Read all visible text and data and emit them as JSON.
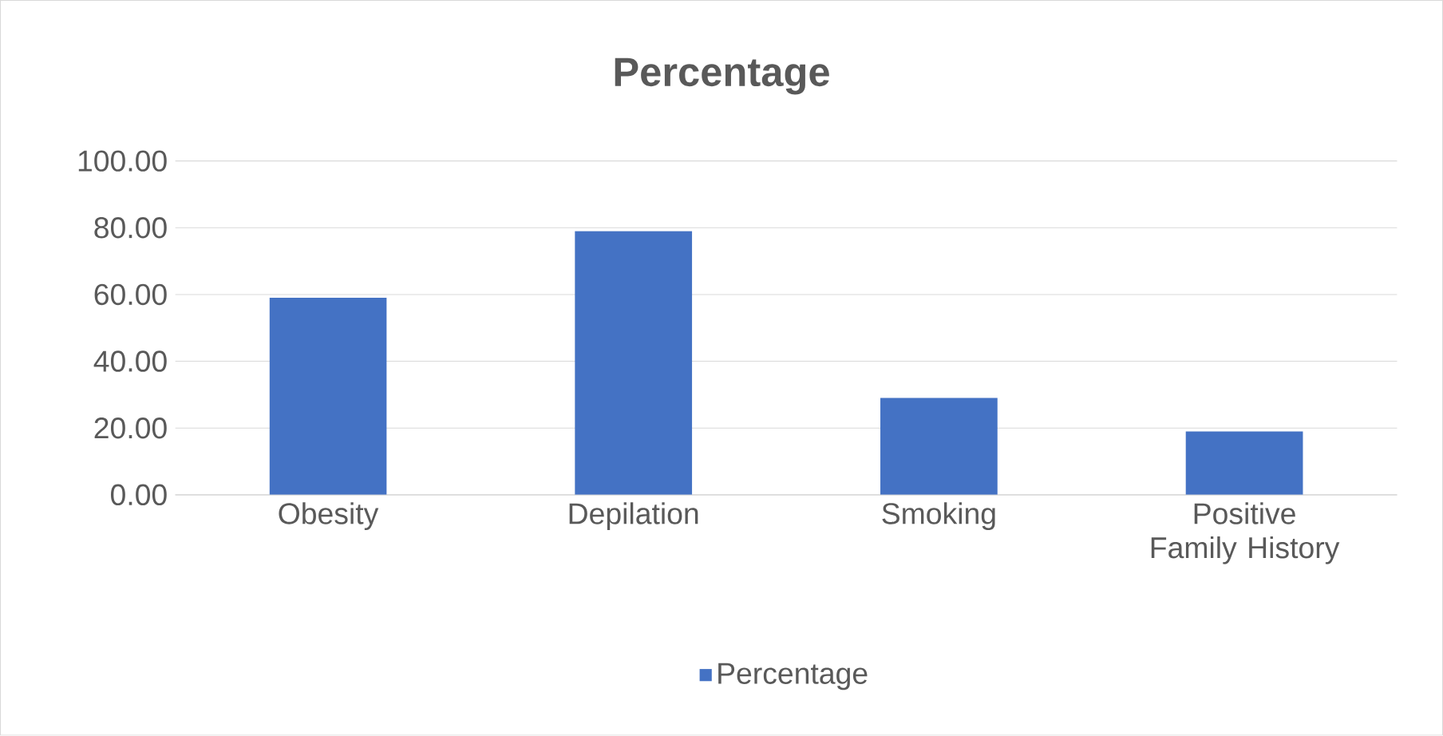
{
  "chart_data": {
    "type": "bar",
    "title": "Percentage",
    "categories": [
      "Obesity",
      "Depilation",
      "Smoking",
      "Positive Family History"
    ],
    "series": [
      {
        "name": "Percentage",
        "color": "#4472c4",
        "values": [
          59,
          79,
          29,
          19
        ]
      }
    ],
    "ylim": [
      0,
      100
    ],
    "yticks": [
      {
        "value": 0,
        "label": "0.00"
      },
      {
        "value": 20,
        "label": "20.00"
      },
      {
        "value": 40,
        "label": "40.00"
      },
      {
        "value": 60,
        "label": "60.00"
      },
      {
        "value": 80,
        "label": "80.00"
      },
      {
        "value": 100,
        "label": "100.00"
      }
    ],
    "grid": "y",
    "legend": "bottom"
  }
}
